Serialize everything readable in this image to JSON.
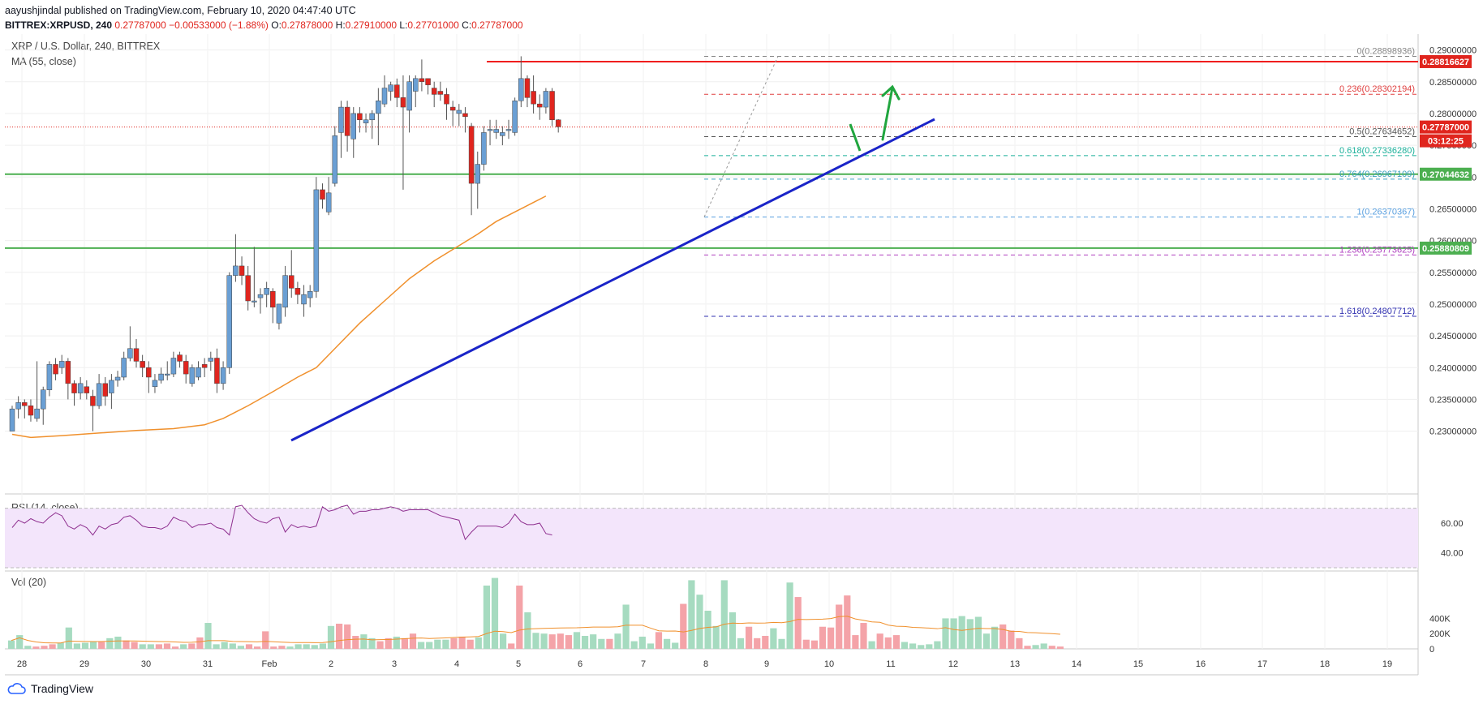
{
  "header": {
    "publisher": "aayushjindal published on TradingView.com, February 10, 2020 04:47:40 UTC",
    "symbol": "BITTREX:XRPUSD, 240",
    "last": "0.27787000",
    "change": "−0.00533000 (−1.88%)",
    "o_label": "O:",
    "o_value": "0.27878000",
    "h_label": "H:",
    "h_value": "0.27910000",
    "l_label": "L:",
    "l_value": "0.27701000",
    "c_label": "C:",
    "c_value": "0.27787000"
  },
  "panes": {
    "main_title": "XRP / U.S. Dollar, 240, BITTREX",
    "ma_title": "MA (55, close)",
    "rsi_title": "RSI (14, close)",
    "vol_title": "Vol (20)"
  },
  "branding": {
    "logo_text": "TradingView"
  },
  "colors": {
    "up": "#6a9fd4",
    "down": "#e0251e",
    "ma": "#f0902c",
    "trendline": "#1a24c8",
    "resistance": "#f01e1e",
    "support": "#4caf50",
    "arrow": "#21a63f",
    "rsi_fill": "#f3e5fb",
    "rsi_line": "#8e2f8f",
    "vol_up": "#a6dbc0",
    "vol_down": "#f4a3a8"
  },
  "chart_data": {
    "type": "candlestick",
    "title": "XRP / U.S. Dollar, 240, BITTREX",
    "x_ticks": [
      "28",
      "29",
      "30",
      "31",
      "Feb",
      "2",
      "3",
      "4",
      "5",
      "6",
      "7",
      "8",
      "9",
      "10",
      "11",
      "12",
      "13",
      "14",
      "15",
      "16",
      "17",
      "18",
      "19"
    ],
    "y_ticks": [
      "0.29000000",
      "0.28500000",
      "0.28000000",
      "0.27500000",
      "0.27000000",
      "0.26500000",
      "0.26000000",
      "0.25500000",
      "0.25000000",
      "0.24500000",
      "0.24000000",
      "0.23500000",
      "0.23000000"
    ],
    "ylim": [
      0.2205,
      0.2925
    ],
    "candles": [
      [
        0.23,
        0.234,
        0.23,
        0.2335
      ],
      [
        0.2335,
        0.2355,
        0.232,
        0.2345
      ],
      [
        0.2345,
        0.235,
        0.232,
        0.234
      ],
      [
        0.234,
        0.235,
        0.2315,
        0.2325
      ],
      [
        0.232,
        0.241,
        0.2315,
        0.2335
      ],
      [
        0.2335,
        0.237,
        0.231,
        0.2365
      ],
      [
        0.2365,
        0.241,
        0.2355,
        0.2405
      ],
      [
        0.2405,
        0.2415,
        0.238,
        0.239
      ],
      [
        0.24,
        0.242,
        0.239,
        0.241
      ],
      [
        0.241,
        0.2415,
        0.235,
        0.2375
      ],
      [
        0.2375,
        0.238,
        0.234,
        0.236
      ],
      [
        0.236,
        0.2385,
        0.235,
        0.2375
      ],
      [
        0.237,
        0.238,
        0.235,
        0.236
      ],
      [
        0.2355,
        0.2365,
        0.23,
        0.234
      ],
      [
        0.234,
        0.239,
        0.2335,
        0.2375
      ],
      [
        0.2375,
        0.2385,
        0.234,
        0.2355
      ],
      [
        0.236,
        0.239,
        0.2335,
        0.238
      ],
      [
        0.238,
        0.2395,
        0.237,
        0.2385
      ],
      [
        0.2385,
        0.2425,
        0.238,
        0.2415
      ],
      [
        0.2415,
        0.2465,
        0.241,
        0.243
      ],
      [
        0.243,
        0.2445,
        0.24,
        0.241
      ],
      [
        0.241,
        0.242,
        0.2385,
        0.24
      ],
      [
        0.24,
        0.241,
        0.236,
        0.2385
      ],
      [
        0.237,
        0.239,
        0.236,
        0.238
      ],
      [
        0.238,
        0.24,
        0.2375,
        0.239
      ],
      [
        0.239,
        0.241,
        0.238,
        0.239
      ],
      [
        0.239,
        0.2425,
        0.2385,
        0.2415
      ],
      [
        0.242,
        0.2425,
        0.24,
        0.241
      ],
      [
        0.241,
        0.242,
        0.2375,
        0.239
      ],
      [
        0.2375,
        0.2405,
        0.237,
        0.24
      ],
      [
        0.2385,
        0.241,
        0.238,
        0.24
      ],
      [
        0.2405,
        0.2415,
        0.2385,
        0.24
      ],
      [
        0.241,
        0.2425,
        0.2395,
        0.2415
      ],
      [
        0.2415,
        0.243,
        0.236,
        0.2375
      ],
      [
        0.2375,
        0.241,
        0.2365,
        0.24
      ],
      [
        0.24,
        0.255,
        0.239,
        0.2545
      ],
      [
        0.2545,
        0.261,
        0.2535,
        0.256
      ],
      [
        0.256,
        0.2575,
        0.253,
        0.2545
      ],
      [
        0.2545,
        0.256,
        0.249,
        0.2505
      ],
      [
        0.2505,
        0.259,
        0.2495,
        0.2505
      ],
      [
        0.251,
        0.2525,
        0.2485,
        0.2515
      ],
      [
        0.2515,
        0.2535,
        0.2495,
        0.2525
      ],
      [
        0.252,
        0.2525,
        0.247,
        0.2495
      ],
      [
        0.247,
        0.25,
        0.246,
        0.25
      ],
      [
        0.2495,
        0.256,
        0.248,
        0.2545
      ],
      [
        0.2545,
        0.2585,
        0.251,
        0.2525
      ],
      [
        0.2525,
        0.2535,
        0.25,
        0.2515
      ],
      [
        0.25,
        0.253,
        0.248,
        0.2515
      ],
      [
        0.251,
        0.253,
        0.2495,
        0.252
      ],
      [
        0.252,
        0.27,
        0.251,
        0.268
      ],
      [
        0.268,
        0.269,
        0.265,
        0.2665
      ],
      [
        0.2645,
        0.27,
        0.264,
        0.2675
      ],
      [
        0.269,
        0.278,
        0.2685,
        0.2765
      ],
      [
        0.277,
        0.282,
        0.273,
        0.281
      ],
      [
        0.281,
        0.282,
        0.274,
        0.2765
      ],
      [
        0.276,
        0.281,
        0.273,
        0.28
      ],
      [
        0.28,
        0.281,
        0.277,
        0.279
      ],
      [
        0.2785,
        0.28,
        0.277,
        0.279
      ],
      [
        0.279,
        0.2805,
        0.276,
        0.28
      ],
      [
        0.28,
        0.284,
        0.275,
        0.282
      ],
      [
        0.2815,
        0.286,
        0.281,
        0.284
      ],
      [
        0.2835,
        0.285,
        0.282,
        0.2845
      ],
      [
        0.2845,
        0.2855,
        0.281,
        0.2825
      ],
      [
        0.2825,
        0.286,
        0.268,
        0.281
      ],
      [
        0.2805,
        0.286,
        0.277,
        0.285
      ],
      [
        0.2835,
        0.286,
        0.281,
        0.2855
      ],
      [
        0.2855,
        0.2885,
        0.2835,
        0.285
      ],
      [
        0.2855,
        0.2855,
        0.283,
        0.2845
      ],
      [
        0.284,
        0.285,
        0.281,
        0.283
      ],
      [
        0.2835,
        0.285,
        0.282,
        0.283
      ],
      [
        0.283,
        0.284,
        0.279,
        0.2815
      ],
      [
        0.281,
        0.282,
        0.278,
        0.2805
      ],
      [
        0.28,
        0.2815,
        0.278,
        0.2805
      ],
      [
        0.28,
        0.281,
        0.277,
        0.2795
      ],
      [
        0.278,
        0.2785,
        0.264,
        0.269
      ],
      [
        0.269,
        0.274,
        0.265,
        0.272
      ],
      [
        0.272,
        0.278,
        0.271,
        0.277
      ],
      [
        0.2775,
        0.279,
        0.275,
        0.2775
      ],
      [
        0.277,
        0.279,
        0.276,
        0.2775
      ],
      [
        0.2765,
        0.278,
        0.275,
        0.277
      ],
      [
        0.2775,
        0.279,
        0.276,
        0.2775
      ],
      [
        0.277,
        0.2825,
        0.2765,
        0.282
      ],
      [
        0.282,
        0.289,
        0.281,
        0.2855
      ],
      [
        0.2855,
        0.286,
        0.281,
        0.2825
      ],
      [
        0.2835,
        0.286,
        0.28,
        0.2815
      ],
      [
        0.2815,
        0.283,
        0.279,
        0.281
      ],
      [
        0.281,
        0.284,
        0.28,
        0.2835
      ],
      [
        0.2835,
        0.284,
        0.278,
        0.279
      ],
      [
        0.279,
        0.2791,
        0.277,
        0.2779
      ]
    ],
    "ma55": [
      [
        0,
        0.2295
      ],
      [
        3,
        0.229
      ],
      [
        8,
        0.2293
      ],
      [
        14,
        0.2297
      ],
      [
        20,
        0.2301
      ],
      [
        26,
        0.2304
      ],
      [
        31,
        0.231
      ],
      [
        34,
        0.232
      ],
      [
        38,
        0.234
      ],
      [
        42,
        0.2362
      ],
      [
        46,
        0.2385
      ],
      [
        49,
        0.24
      ],
      [
        52,
        0.243
      ],
      [
        56,
        0.247
      ],
      [
        60,
        0.2505
      ],
      [
        64,
        0.254
      ],
      [
        68,
        0.2568
      ],
      [
        72,
        0.2592
      ],
      [
        75,
        0.261
      ],
      [
        78,
        0.263
      ],
      [
        81,
        0.2645
      ],
      [
        84,
        0.266
      ],
      [
        86,
        0.267
      ]
    ],
    "horizontal_levels": [
      {
        "name": "resistance",
        "value": 0.28816627,
        "label": "0.28816627",
        "kind": "resistance"
      },
      {
        "name": "current",
        "value": 0.27787,
        "label": "0.27787000",
        "kind": "current"
      },
      {
        "name": "support1",
        "value": 0.27044632,
        "label": "0.27044632",
        "kind": "support"
      },
      {
        "name": "support2",
        "value": 0.25880809,
        "label": "0.25880809",
        "kind": "support"
      }
    ],
    "countdown": "03:12:25",
    "fibonacci": [
      {
        "ratio": "0",
        "value": 0.28898936,
        "label": "0(0.28898936)",
        "color": "#888888"
      },
      {
        "ratio": "0.236",
        "value": 0.28302194,
        "label": "0.236(0.28302194)",
        "color": "#e04040"
      },
      {
        "ratio": "0.5",
        "value": 0.27634652,
        "label": "0.5(0.27634652)",
        "color": "#555555"
      },
      {
        "ratio": "0.618",
        "value": 0.2733628,
        "label": "0.618(0.27336280)",
        "color": "#1ab09a"
      },
      {
        "ratio": "0.764",
        "value": 0.26967109,
        "label": "0.764(0.26967109)",
        "color": "#3aa0c0"
      },
      {
        "ratio": "1",
        "value": 0.26370367,
        "label": "1(0.26370367)",
        "color": "#5aa0e0"
      },
      {
        "ratio": "1.236",
        "value": 0.25773625,
        "label": "1.236(0.25773625)",
        "color": "#b040c0"
      },
      {
        "ratio": "1.618",
        "value": 0.24807712,
        "label": "1.618(0.24807712)",
        "color": "#3030b0"
      }
    ],
    "rsi": {
      "ticks": [
        "60.00",
        "40.00"
      ],
      "values": [
        57,
        62,
        60,
        63,
        61,
        60,
        64,
        67,
        65,
        58,
        56,
        59,
        57,
        52,
        58,
        56,
        59,
        60,
        64,
        65,
        62,
        58,
        57,
        57,
        56,
        58,
        64,
        62,
        61,
        57,
        59,
        59,
        60,
        57,
        56,
        52,
        71,
        72,
        67,
        63,
        61,
        60,
        63,
        64,
        54,
        59,
        57,
        58,
        57,
        58,
        71,
        68,
        69,
        71,
        72,
        66,
        68,
        68,
        69,
        69,
        70,
        71,
        70,
        68,
        69,
        69,
        69,
        69,
        67,
        65,
        64,
        63,
        62,
        49,
        54,
        58,
        58,
        58,
        58,
        57,
        60,
        66,
        61,
        59,
        59,
        60,
        53,
        52
      ]
    },
    "volume": {
      "ticks": [
        "400K",
        "200K",
        "0"
      ],
      "values_k": [
        110,
        180,
        40,
        30,
        40,
        60,
        80,
        280,
        70,
        80,
        90,
        90,
        140,
        160,
        110,
        90,
        60,
        60,
        60,
        70,
        30,
        60,
        70,
        150,
        340,
        60,
        90,
        70,
        40,
        60,
        30,
        230,
        30,
        40,
        30,
        60,
        60,
        50,
        70,
        300,
        330,
        320,
        170,
        190,
        140,
        100,
        140,
        160,
        140,
        200,
        90,
        90,
        120,
        120,
        140,
        160,
        120,
        150,
        830,
        930,
        200,
        70,
        830,
        480,
        210,
        200,
        190,
        200,
        180,
        220,
        170,
        190,
        130,
        130,
        200,
        580,
        100,
        160,
        70,
        220,
        130,
        80,
        590,
        900,
        710,
        500,
        300,
        900,
        480,
        140,
        290,
        140,
        170,
        270,
        130,
        870,
        680,
        120,
        110,
        290,
        280,
        580,
        700,
        180,
        340,
        100,
        200,
        150,
        180,
        90,
        70,
        50,
        60,
        100,
        400,
        400,
        430,
        390,
        420,
        200,
        290,
        320,
        240,
        140,
        40,
        50,
        70,
        40,
        30
      ],
      "up_flags": []
    }
  }
}
